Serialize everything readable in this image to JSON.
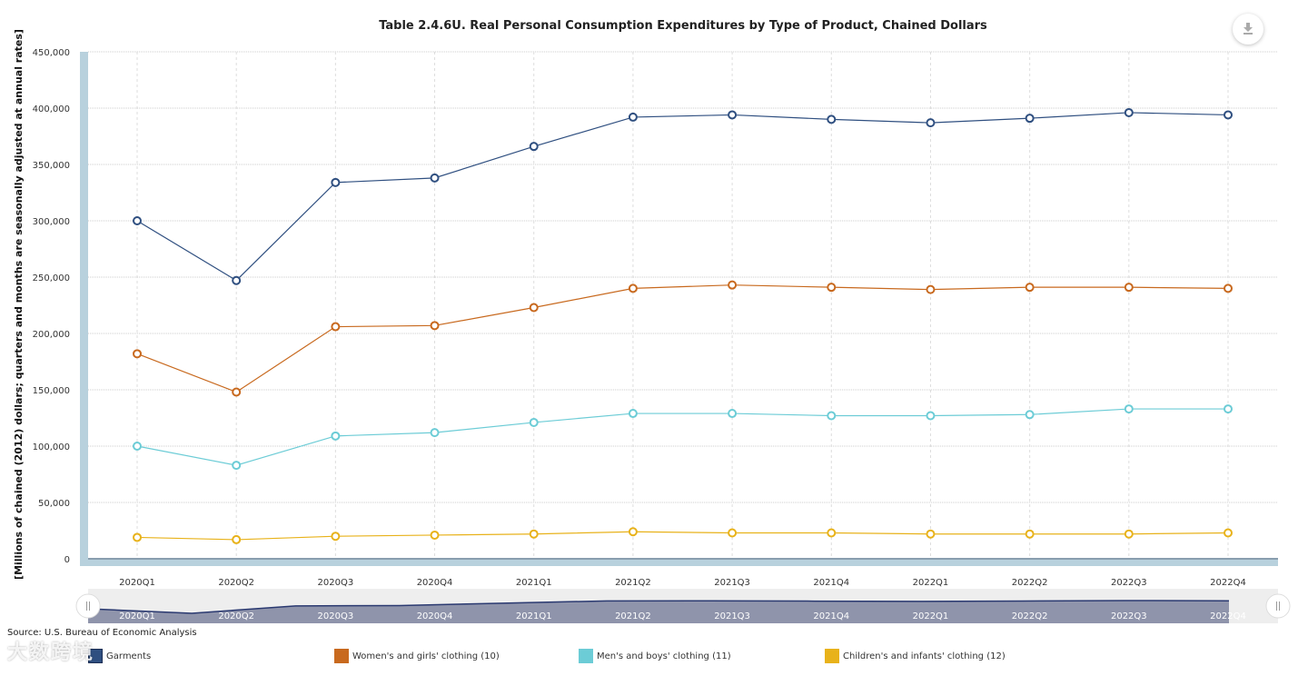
{
  "source": "Source: U.S. Bureau of Economic Analysis",
  "watermark": "大数跨境",
  "colors": {
    "garments": "#2f4f80",
    "women": "#c8691e",
    "men": "#6cccd6",
    "children": "#e8b21a",
    "axis_band": "#b8d1dd",
    "navigator_fill": "#8f94ab"
  },
  "chart_data": {
    "type": "line",
    "title": "Table 2.4.6U. Real Personal Consumption Expenditures by Type of Product, Chained Dollars",
    "ylabel": "[Millions of chained (2012) dollars; quarters and months are seasonally adjusted at annual rates]",
    "xlabel": "",
    "ylim": [
      0,
      450000
    ],
    "yticks": [
      "0",
      "50,000",
      "100,000",
      "150,000",
      "200,000",
      "250,000",
      "300,000",
      "350,000",
      "400,000",
      "450,000"
    ],
    "categories": [
      "2020Q1",
      "2020Q2",
      "2020Q3",
      "2020Q4",
      "2021Q1",
      "2021Q2",
      "2021Q3",
      "2021Q4",
      "2022Q1",
      "2022Q2",
      "2022Q3",
      "2022Q4"
    ],
    "grid": true,
    "legend_position": "bottom",
    "series": [
      {
        "name": "Garments",
        "key": "garments",
        "values": [
          300000,
          247000,
          334000,
          338000,
          366000,
          392000,
          394000,
          390000,
          387000,
          391000,
          396000,
          394000
        ]
      },
      {
        "name": "Women's and girls' clothing (10)",
        "key": "women",
        "values": [
          182000,
          148000,
          206000,
          207000,
          223000,
          240000,
          243000,
          241000,
          239000,
          241000,
          241000,
          240000
        ]
      },
      {
        "name": "Men's and boys' clothing (11)",
        "key": "men",
        "values": [
          100000,
          83000,
          109000,
          112000,
          121000,
          129000,
          129000,
          127000,
          127000,
          128000,
          133000,
          133000
        ]
      },
      {
        "name": "Children's and infants' clothing (12)",
        "key": "children",
        "values": [
          19000,
          17000,
          20000,
          21000,
          22000,
          24000,
          23000,
          23000,
          22000,
          22000,
          22000,
          23000
        ]
      }
    ]
  }
}
